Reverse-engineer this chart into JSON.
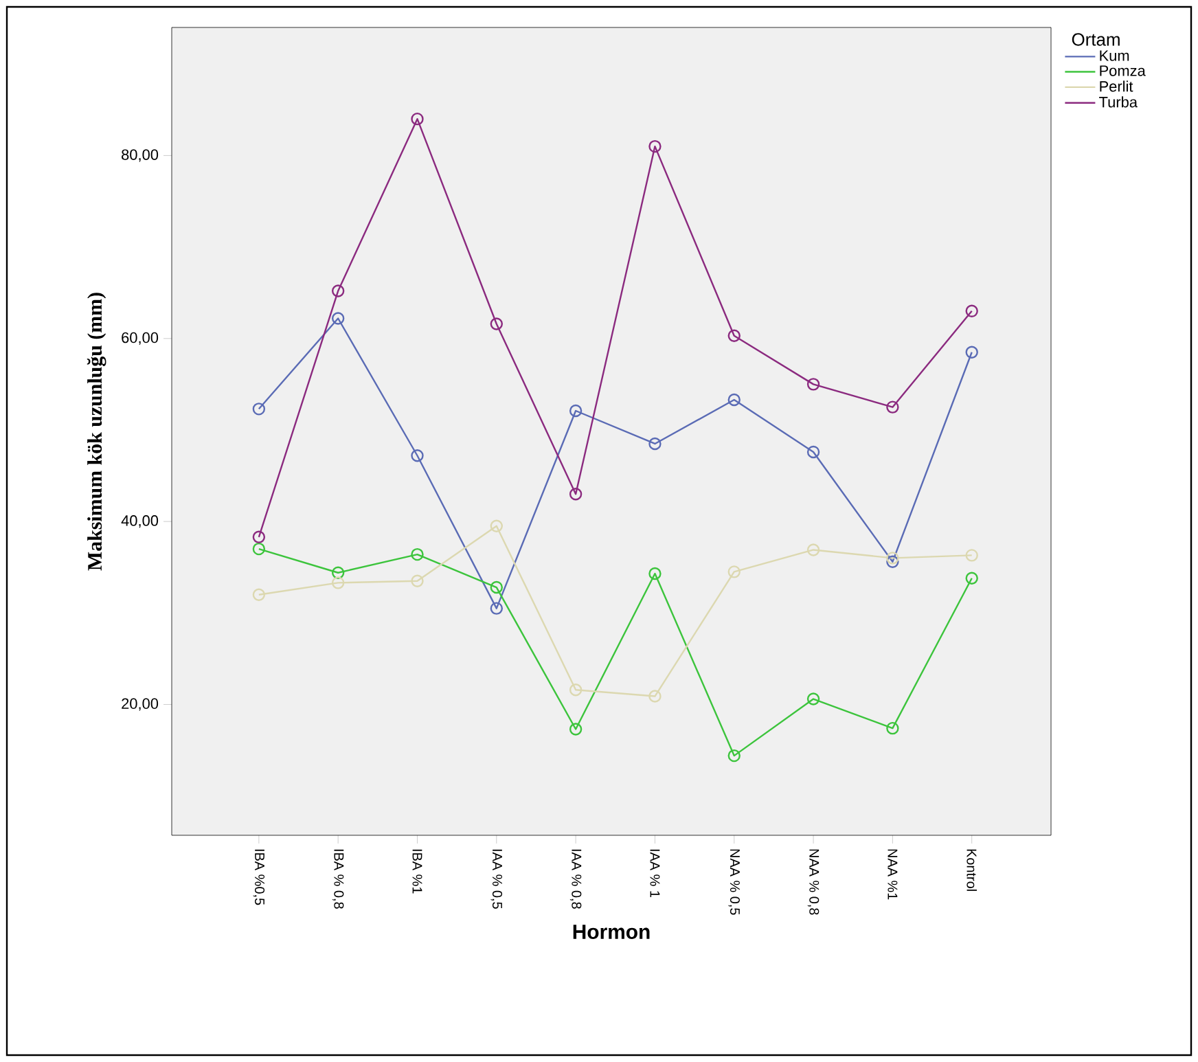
{
  "chart_data": {
    "type": "line",
    "xlabel": "Hormon",
    "ylabel": "Maksimum kök uzunluğu (mm)",
    "legend_title": "Ortam",
    "categories": [
      "IBA %0,5",
      "IBA % 0,8",
      "IBA %1",
      "IAA % 0,5",
      "IAA % 0,8",
      "IAA % 1",
      "NAA % 0,5",
      "NAA % 0,8",
      "NAA %1",
      "Kontrol"
    ],
    "series": [
      {
        "name": "Kum",
        "color": "#5a6bb5",
        "values": [
          52.3,
          62.2,
          47.2,
          30.5,
          52.1,
          48.5,
          53.3,
          47.6,
          35.6,
          58.5
        ]
      },
      {
        "name": "Pomza",
        "color": "#3cc43c",
        "values": [
          37.0,
          34.4,
          36.4,
          32.8,
          17.3,
          34.3,
          14.4,
          20.6,
          17.4,
          33.8
        ]
      },
      {
        "name": "Perlit",
        "color": "#dcd8b0",
        "values": [
          32.0,
          33.3,
          33.5,
          39.5,
          21.6,
          20.9,
          34.5,
          36.9,
          36.0,
          36.3
        ]
      },
      {
        "name": "Turba",
        "color": "#8b2a7f",
        "values": [
          38.3,
          65.2,
          84.0,
          61.6,
          43.0,
          81.0,
          60.3,
          55.0,
          52.5,
          63.0
        ]
      }
    ],
    "ylim": [
      5.7,
      94
    ],
    "yticks": [
      {
        "value": 20,
        "label": "20,00"
      },
      {
        "value": 40,
        "label": "40,00"
      },
      {
        "value": 60,
        "label": "60,00"
      },
      {
        "value": 80,
        "label": "80,00"
      }
    ],
    "grid": false,
    "legend": "right",
    "marker": "circle",
    "line_style": "solid"
  }
}
